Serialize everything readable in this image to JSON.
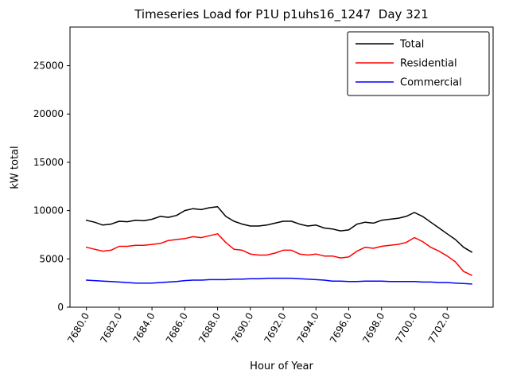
{
  "figure": {
    "background": "#ffffff",
    "axes_color": "#000000"
  },
  "chart_data": {
    "type": "line",
    "title": "Timeseries Load for P1U p1uhs16_1247  Day 321",
    "xlabel": "Hour of Year",
    "ylabel": "kW total",
    "xlim": [
      7679.0,
      7704.8
    ],
    "ylim": [
      0,
      29000
    ],
    "grid": false,
    "legend_position": "upper right",
    "xticks": {
      "values": [
        7680,
        7682,
        7684,
        7686,
        7688,
        7690,
        7692,
        7694,
        7696,
        7698,
        7700,
        7702
      ],
      "labels": [
        "7680.0",
        "7682.0",
        "7684.0",
        "7686.0",
        "7688.0",
        "7690.0",
        "7692.0",
        "7694.0",
        "7696.0",
        "7698.0",
        "7700.0",
        "7702.0"
      ]
    },
    "yticks": {
      "values": [
        0,
        5000,
        10000,
        15000,
        20000,
        25000
      ],
      "labels": [
        "0",
        "5000",
        "10000",
        "15000",
        "20000",
        "25000"
      ]
    },
    "x": [
      7680.0,
      7680.5,
      7681.0,
      7681.5,
      7682.0,
      7682.5,
      7683.0,
      7683.5,
      7684.0,
      7684.5,
      7685.0,
      7685.5,
      7686.0,
      7686.5,
      7687.0,
      7687.5,
      7688.0,
      7688.5,
      7689.0,
      7689.5,
      7690.0,
      7690.5,
      7691.0,
      7691.5,
      7692.0,
      7692.5,
      7693.0,
      7693.5,
      7694.0,
      7694.5,
      7695.0,
      7695.5,
      7696.0,
      7696.5,
      7697.0,
      7697.5,
      7698.0,
      7698.5,
      7699.0,
      7699.5,
      7700.0,
      7700.5,
      7701.0,
      7701.5,
      7702.0,
      7702.5,
      7703.0,
      7703.5
    ],
    "series": [
      {
        "name": "Total",
        "color": "#000000",
        "values": [
          9000,
          8800,
          8500,
          8600,
          8900,
          8850,
          9000,
          8950,
          9100,
          9400,
          9300,
          9500,
          10000,
          10200,
          10100,
          10300,
          10400,
          9400,
          8900,
          8600,
          8400,
          8400,
          8500,
          8700,
          8900,
          8900,
          8600,
          8400,
          8500,
          8200,
          8100,
          7900,
          8000,
          8600,
          8800,
          8700,
          9000,
          9100,
          9200,
          9400,
          9800,
          9400,
          8800,
          8200,
          7600,
          7000,
          6200,
          5700
        ]
      },
      {
        "name": "Residential",
        "color": "#ff0000",
        "values": [
          6200,
          6000,
          5800,
          5900,
          6300,
          6300,
          6400,
          6400,
          6500,
          6600,
          6900,
          7000,
          7100,
          7300,
          7200,
          7400,
          7600,
          6700,
          6000,
          5900,
          5500,
          5400,
          5400,
          5600,
          5900,
          5900,
          5500,
          5400,
          5500,
          5300,
          5300,
          5100,
          5200,
          5800,
          6200,
          6100,
          6300,
          6400,
          6500,
          6700,
          7200,
          6800,
          6200,
          5800,
          5300,
          4700,
          3700,
          3300
        ]
      },
      {
        "name": "Commercial",
        "color": "#0000ff",
        "values": [
          2800,
          2750,
          2700,
          2650,
          2600,
          2550,
          2500,
          2500,
          2500,
          2550,
          2600,
          2650,
          2750,
          2800,
          2800,
          2850,
          2850,
          2850,
          2900,
          2900,
          2950,
          2950,
          3000,
          3000,
          3000,
          3000,
          2950,
          2900,
          2850,
          2800,
          2700,
          2700,
          2650,
          2650,
          2700,
          2700,
          2700,
          2650,
          2650,
          2650,
          2650,
          2600,
          2600,
          2550,
          2550,
          2500,
          2450,
          2400
        ]
      }
    ]
  }
}
